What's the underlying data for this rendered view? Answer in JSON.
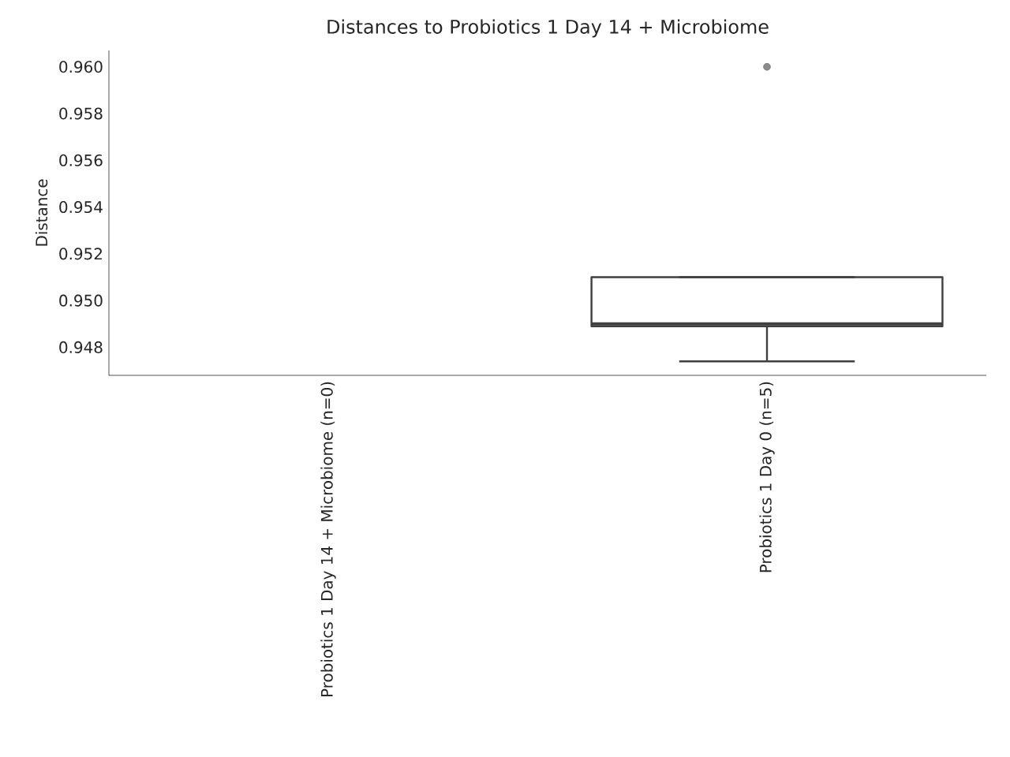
{
  "chart_data": {
    "type": "box",
    "title": "Distances to Probiotics 1 Day 14 + Microbiome",
    "ylabel": "Distance",
    "categories": [
      "Probiotics 1 Day 14 + Microbiome (n=0)",
      "Probiotics 1 Day 0 (n=5)"
    ],
    "boxes": [
      null,
      {
        "low": 0.9474,
        "q1": 0.9489,
        "median": 0.949,
        "q3": 0.951,
        "high": 0.951,
        "outliers": [
          0.96
        ]
      }
    ],
    "ylim": [
      0.9468,
      0.9607
    ],
    "yticks": [
      0.948,
      {
        "value": 0.95,
        "label": "0.950"
      },
      0.952,
      0.954,
      0.956,
      0.958,
      {
        "value": 0.96,
        "label": "0.960"
      }
    ]
  }
}
